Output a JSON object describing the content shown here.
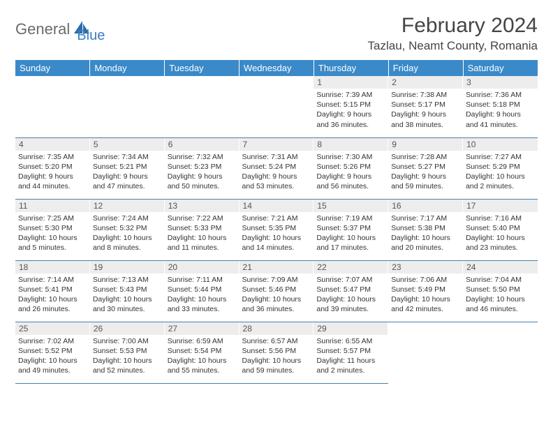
{
  "logo": {
    "text1": "General",
    "text2": "Blue"
  },
  "header": {
    "month_title": "February 2024",
    "location": "Tazlau, Neamt County, Romania"
  },
  "colors": {
    "header_bg": "#3a89c9",
    "header_text": "#ffffff",
    "daynum_bg": "#ededed",
    "border": "#4a7fa8",
    "logo_gray": "#6b6b6b",
    "logo_blue": "#3a7fbf"
  },
  "weekdays": [
    "Sunday",
    "Monday",
    "Tuesday",
    "Wednesday",
    "Thursday",
    "Friday",
    "Saturday"
  ],
  "weeks": [
    [
      null,
      null,
      null,
      null,
      {
        "n": "1",
        "sunrise": "7:39 AM",
        "sunset": "5:15 PM",
        "daylight": "9 hours and 36 minutes."
      },
      {
        "n": "2",
        "sunrise": "7:38 AM",
        "sunset": "5:17 PM",
        "daylight": "9 hours and 38 minutes."
      },
      {
        "n": "3",
        "sunrise": "7:36 AM",
        "sunset": "5:18 PM",
        "daylight": "9 hours and 41 minutes."
      }
    ],
    [
      {
        "n": "4",
        "sunrise": "7:35 AM",
        "sunset": "5:20 PM",
        "daylight": "9 hours and 44 minutes."
      },
      {
        "n": "5",
        "sunrise": "7:34 AM",
        "sunset": "5:21 PM",
        "daylight": "9 hours and 47 minutes."
      },
      {
        "n": "6",
        "sunrise": "7:32 AM",
        "sunset": "5:23 PM",
        "daylight": "9 hours and 50 minutes."
      },
      {
        "n": "7",
        "sunrise": "7:31 AM",
        "sunset": "5:24 PM",
        "daylight": "9 hours and 53 minutes."
      },
      {
        "n": "8",
        "sunrise": "7:30 AM",
        "sunset": "5:26 PM",
        "daylight": "9 hours and 56 minutes."
      },
      {
        "n": "9",
        "sunrise": "7:28 AM",
        "sunset": "5:27 PM",
        "daylight": "9 hours and 59 minutes."
      },
      {
        "n": "10",
        "sunrise": "7:27 AM",
        "sunset": "5:29 PM",
        "daylight": "10 hours and 2 minutes."
      }
    ],
    [
      {
        "n": "11",
        "sunrise": "7:25 AM",
        "sunset": "5:30 PM",
        "daylight": "10 hours and 5 minutes."
      },
      {
        "n": "12",
        "sunrise": "7:24 AM",
        "sunset": "5:32 PM",
        "daylight": "10 hours and 8 minutes."
      },
      {
        "n": "13",
        "sunrise": "7:22 AM",
        "sunset": "5:33 PM",
        "daylight": "10 hours and 11 minutes."
      },
      {
        "n": "14",
        "sunrise": "7:21 AM",
        "sunset": "5:35 PM",
        "daylight": "10 hours and 14 minutes."
      },
      {
        "n": "15",
        "sunrise": "7:19 AM",
        "sunset": "5:37 PM",
        "daylight": "10 hours and 17 minutes."
      },
      {
        "n": "16",
        "sunrise": "7:17 AM",
        "sunset": "5:38 PM",
        "daylight": "10 hours and 20 minutes."
      },
      {
        "n": "17",
        "sunrise": "7:16 AM",
        "sunset": "5:40 PM",
        "daylight": "10 hours and 23 minutes."
      }
    ],
    [
      {
        "n": "18",
        "sunrise": "7:14 AM",
        "sunset": "5:41 PM",
        "daylight": "10 hours and 26 minutes."
      },
      {
        "n": "19",
        "sunrise": "7:13 AM",
        "sunset": "5:43 PM",
        "daylight": "10 hours and 30 minutes."
      },
      {
        "n": "20",
        "sunrise": "7:11 AM",
        "sunset": "5:44 PM",
        "daylight": "10 hours and 33 minutes."
      },
      {
        "n": "21",
        "sunrise": "7:09 AM",
        "sunset": "5:46 PM",
        "daylight": "10 hours and 36 minutes."
      },
      {
        "n": "22",
        "sunrise": "7:07 AM",
        "sunset": "5:47 PM",
        "daylight": "10 hours and 39 minutes."
      },
      {
        "n": "23",
        "sunrise": "7:06 AM",
        "sunset": "5:49 PM",
        "daylight": "10 hours and 42 minutes."
      },
      {
        "n": "24",
        "sunrise": "7:04 AM",
        "sunset": "5:50 PM",
        "daylight": "10 hours and 46 minutes."
      }
    ],
    [
      {
        "n": "25",
        "sunrise": "7:02 AM",
        "sunset": "5:52 PM",
        "daylight": "10 hours and 49 minutes."
      },
      {
        "n": "26",
        "sunrise": "7:00 AM",
        "sunset": "5:53 PM",
        "daylight": "10 hours and 52 minutes."
      },
      {
        "n": "27",
        "sunrise": "6:59 AM",
        "sunset": "5:54 PM",
        "daylight": "10 hours and 55 minutes."
      },
      {
        "n": "28",
        "sunrise": "6:57 AM",
        "sunset": "5:56 PM",
        "daylight": "10 hours and 59 minutes."
      },
      {
        "n": "29",
        "sunrise": "6:55 AM",
        "sunset": "5:57 PM",
        "daylight": "11 hours and 2 minutes."
      },
      null,
      null
    ]
  ],
  "labels": {
    "sunrise": "Sunrise: ",
    "sunset": "Sunset: ",
    "daylight": "Daylight: "
  }
}
